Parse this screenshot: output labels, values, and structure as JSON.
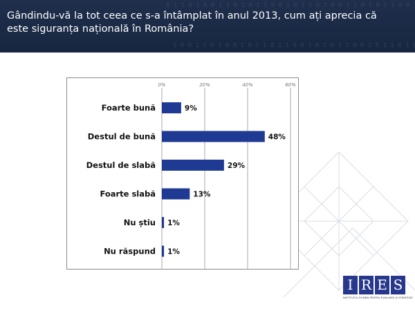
{
  "header": {
    "title": "Gândindu-vă la tot ceea ce s-a întâmplat în anul 2013, cum ați aprecia că este siguranța națională în România?"
  },
  "colors": {
    "bar": "#1f3a93",
    "header_bg": "#1a2a46",
    "logo": "#27378c"
  },
  "chart_data": {
    "type": "bar",
    "orientation": "horizontal",
    "categories": [
      "Foarte bună",
      "Destul de bună",
      "Destul de slabă",
      "Foarte slabă",
      "Nu știu",
      "Nu răspund"
    ],
    "values": [
      9,
      48,
      29,
      13,
      1,
      1
    ],
    "value_labels": [
      "9%",
      "48%",
      "29%",
      "13%",
      "1%",
      "1%"
    ],
    "xlim": [
      0,
      60
    ],
    "xticks": [
      0,
      20,
      40,
      60
    ],
    "xtick_labels": [
      "0%",
      "20%",
      "40%",
      "60%"
    ],
    "xaxis_position": "top",
    "grid": true,
    "title": "",
    "xlabel": "",
    "ylabel": ""
  },
  "logo": {
    "letters": [
      "I",
      "R",
      "E",
      "S"
    ],
    "tagline": "INSTITUTUL ROMÂN PENTRU EVALUARE ȘI STRATEGIE"
  }
}
